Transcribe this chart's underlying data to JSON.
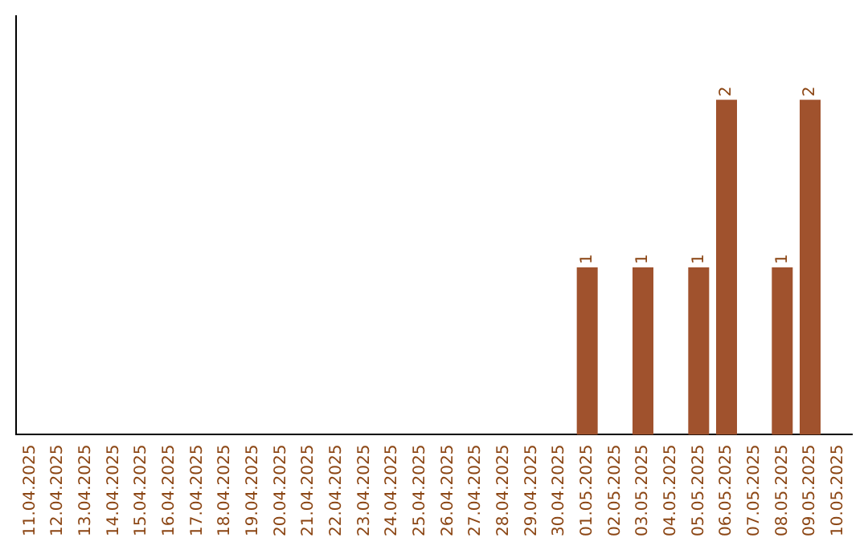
{
  "chart_data": {
    "type": "bar",
    "categories": [
      "11.04.2025",
      "12.04.2025",
      "13.04.2025",
      "14.04.2025",
      "15.04.2025",
      "16.04.2025",
      "17.04.2025",
      "18.04.2025",
      "19.04.2025",
      "20.04.2025",
      "21.04.2025",
      "22.04.2025",
      "23.04.2025",
      "24.04.2025",
      "25.04.2025",
      "26.04.2025",
      "27.04.2025",
      "28.04.2025",
      "29.04.2025",
      "30.04.2025",
      "01.05.2025",
      "02.05.2025",
      "03.05.2025",
      "04.05.2025",
      "05.05.2025",
      "06.05.2025",
      "07.05.2025",
      "08.05.2025",
      "09.05.2025",
      "10.05.2025"
    ],
    "values": [
      null,
      null,
      null,
      null,
      null,
      null,
      null,
      null,
      null,
      null,
      null,
      null,
      null,
      null,
      null,
      null,
      null,
      null,
      null,
      null,
      1,
      null,
      1,
      null,
      1,
      2,
      null,
      1,
      2,
      null
    ],
    "data_labels": true,
    "color": "#a0522d",
    "tick_labels": "x",
    "grid": false,
    "legend": false
  }
}
